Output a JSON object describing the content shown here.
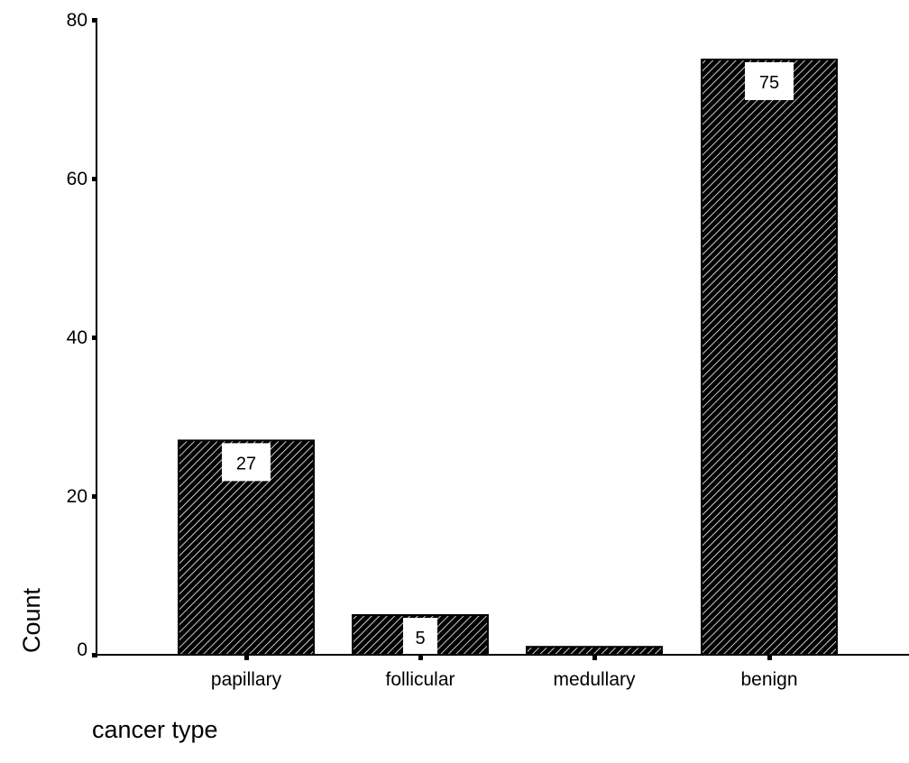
{
  "chart_data": {
    "type": "bar",
    "categories": [
      "papillary",
      "follicular",
      "medullary",
      "benign"
    ],
    "values": [
      27,
      5,
      1,
      75
    ],
    "data_labels": [
      "27",
      "5",
      "",
      "75"
    ],
    "xlabel": "cancer type",
    "ylabel": "Count",
    "ylim": [
      0,
      80
    ],
    "yticks": [
      0,
      20,
      40,
      60,
      80
    ],
    "grid": false,
    "legend": "none",
    "bar_fill": "hatched",
    "colors": {
      "bar_fill": "#000000",
      "bar_hatch": "#ffffff",
      "axis": "#000000",
      "label_box": "#ffffff"
    }
  }
}
